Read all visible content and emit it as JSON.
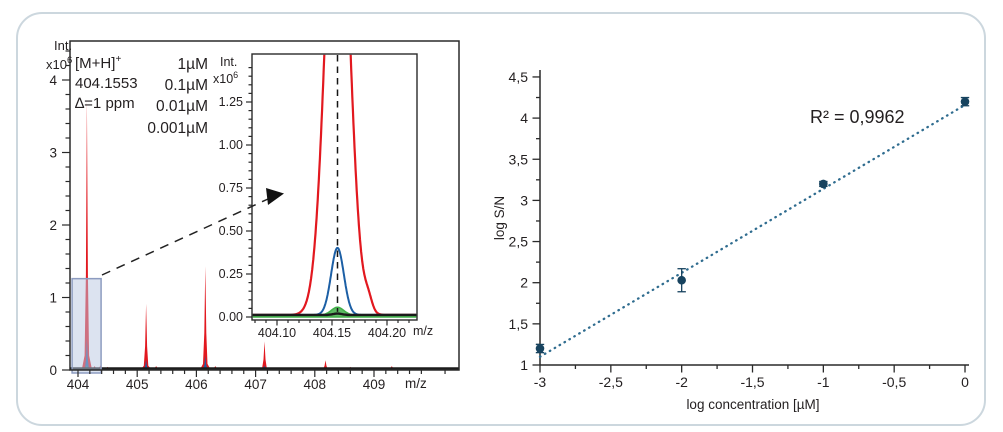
{
  "figure": {
    "background": "#ffffff",
    "card_border_color": "#ccd7de"
  },
  "labels": {
    "int": "Int.",
    "x10": "x10",
    "exp": "6",
    "mz": "m/z",
    "annotation": {
      "line1": "[M+H]",
      "line1_sup": "+",
      "line2": "404.1553",
      "line3": "∆=1 ppm"
    }
  },
  "chart_data": [
    {
      "id": "mass-spectrum",
      "type": "line",
      "title": "",
      "xlabel": "m/z",
      "ylabel": "Int. x10^6",
      "xlim": [
        403.86,
        410.44
      ],
      "ylim": [
        0,
        4.55
      ],
      "x_ticks": [
        404,
        405,
        406,
        407,
        408,
        409
      ],
      "x_tick_labels": [
        "404",
        "405",
        "406",
        "407",
        "408",
        "409"
      ],
      "x_minor_step": 0.2,
      "y_ticks": [
        0,
        1,
        2,
        3,
        4
      ],
      "y_tick_labels": [
        "0",
        "1",
        "2",
        "3",
        "4"
      ],
      "y_minor_step": 0.2,
      "legend_position": "top-center",
      "legend": [
        {
          "label": "1µM",
          "color": "#e2181f"
        },
        {
          "label": "0.1µM",
          "color": "#1c5fa5"
        },
        {
          "label": "0.01µM",
          "color": "#41ae49"
        },
        {
          "label": "0.001µM",
          "color": "#1a1a1a"
        }
      ],
      "series": [
        {
          "name": "1uM",
          "color": "#e2181f",
          "peaks": [
            [
              404.15,
              3.72
            ],
            [
              405.15,
              0.9
            ],
            [
              406.15,
              1.42
            ],
            [
              407.15,
              0.38
            ],
            [
              408.18,
              0.12
            ]
          ]
        },
        {
          "name": "0.1uM",
          "color": "#1c5fa5",
          "peaks": [
            [
              404.15,
              0.42
            ],
            [
              405.15,
              0.13
            ],
            [
              406.15,
              0.18
            ],
            [
              407.15,
              0.05
            ],
            [
              408.18,
              0.02
            ]
          ]
        },
        {
          "name": "0.01uM",
          "color": "#41ae49",
          "peaks": [
            [
              404.15,
              0.05
            ]
          ]
        },
        {
          "name": "0.001uM",
          "color": "#1a1a1a",
          "peaks": [
            [
              404.15,
              0.02
            ]
          ]
        }
      ],
      "noise": [
        [
          404.28,
          0.04
        ],
        [
          404.38,
          0.05
        ],
        [
          404.5,
          0.03
        ],
        [
          405.32,
          0.04
        ],
        [
          406.32,
          0.04
        ],
        [
          408.6,
          0.03
        ],
        [
          409.3,
          0.04
        ]
      ],
      "baseline_level": 0.02,
      "highlight_box": {
        "x": [
          403.9,
          404.39
        ],
        "y": [
          0,
          1.26
        ]
      }
    },
    {
      "id": "inset-zoom",
      "type": "line",
      "xlabel": "m/z",
      "ylabel": "Int. x10^6",
      "xlim": [
        404.077,
        404.227
      ],
      "ylim": [
        0,
        1.53
      ],
      "x_ticks": [
        404.1,
        404.15,
        404.2
      ],
      "x_tick_labels": [
        "404.10",
        "404.15",
        "404.20"
      ],
      "x_minor_step": 0.01,
      "y_ticks": [
        0,
        0.25,
        0.5,
        0.75,
        1,
        1.25
      ],
      "y_tick_labels": [
        "0.00",
        "0.25",
        "0.50",
        "0.75",
        "1.00",
        "1.25"
      ],
      "y_minor_step": 0.05,
      "marker_mz": 404.155,
      "curves": [
        {
          "name": "1uM",
          "color": "#e2181f",
          "center": 404.155,
          "amp": 2.9,
          "sigma": 0.0105,
          "base": 0.012,
          "bump": {
            "center": 404.183,
            "amp": 0.07,
            "sigma": 0.0035
          },
          "width": 2.2
        },
        {
          "name": "0.1uM",
          "color": "#1c5fa5",
          "center": 404.155,
          "amp": 0.39,
          "sigma": 0.0058,
          "base": 0.012,
          "width": 2
        },
        {
          "name": "0.01uM",
          "color": "#41ae49",
          "center": 404.155,
          "amp": 0.045,
          "sigma": 0.0055,
          "base": 0.012,
          "fill": true,
          "width": 1.5
        },
        {
          "name": "0.001uM",
          "color": "#1a1a1a",
          "center": 404.155,
          "amp": 0.008,
          "sigma": 0.004,
          "base": 0.012,
          "width": 2.4
        }
      ]
    },
    {
      "id": "calibration-curve",
      "type": "scatter",
      "xlabel": "log concentration [µM]",
      "ylabel": "log S/N",
      "r2_label": "R² = 0,9962",
      "xlim": [
        -3,
        0
      ],
      "ylim": [
        1,
        4.5
      ],
      "x_ticks": [
        -3,
        -2.5,
        -2,
        -1.5,
        -1,
        -0.5,
        0
      ],
      "x_tick_labels": [
        "-3",
        "-2,5",
        "-2",
        "-1,5",
        "-1",
        "-0,5",
        "0"
      ],
      "x_minor_step": 0.25,
      "y_ticks": [
        1,
        1.5,
        2,
        2.5,
        3,
        3.5,
        4,
        4.5
      ],
      "y_tick_labels": [
        "1",
        "1,5",
        "2",
        "2,5",
        "3",
        "3,5",
        "4",
        "4,5"
      ],
      "y_minor_step": 0.25,
      "point_color": "#17435f",
      "points": [
        {
          "x": -3,
          "y": 1.2,
          "err": 0.05
        },
        {
          "x": -2,
          "y": 2.03,
          "err": 0.14
        },
        {
          "x": -1,
          "y": 3.2,
          "err": 0.03
        },
        {
          "x": 0,
          "y": 4.2,
          "err": 0.05
        }
      ],
      "trendline": {
        "style": "dotted",
        "color": "#2f6c8f",
        "from": [
          -3,
          1.1
        ],
        "to": [
          0,
          4.16
        ]
      }
    }
  ]
}
